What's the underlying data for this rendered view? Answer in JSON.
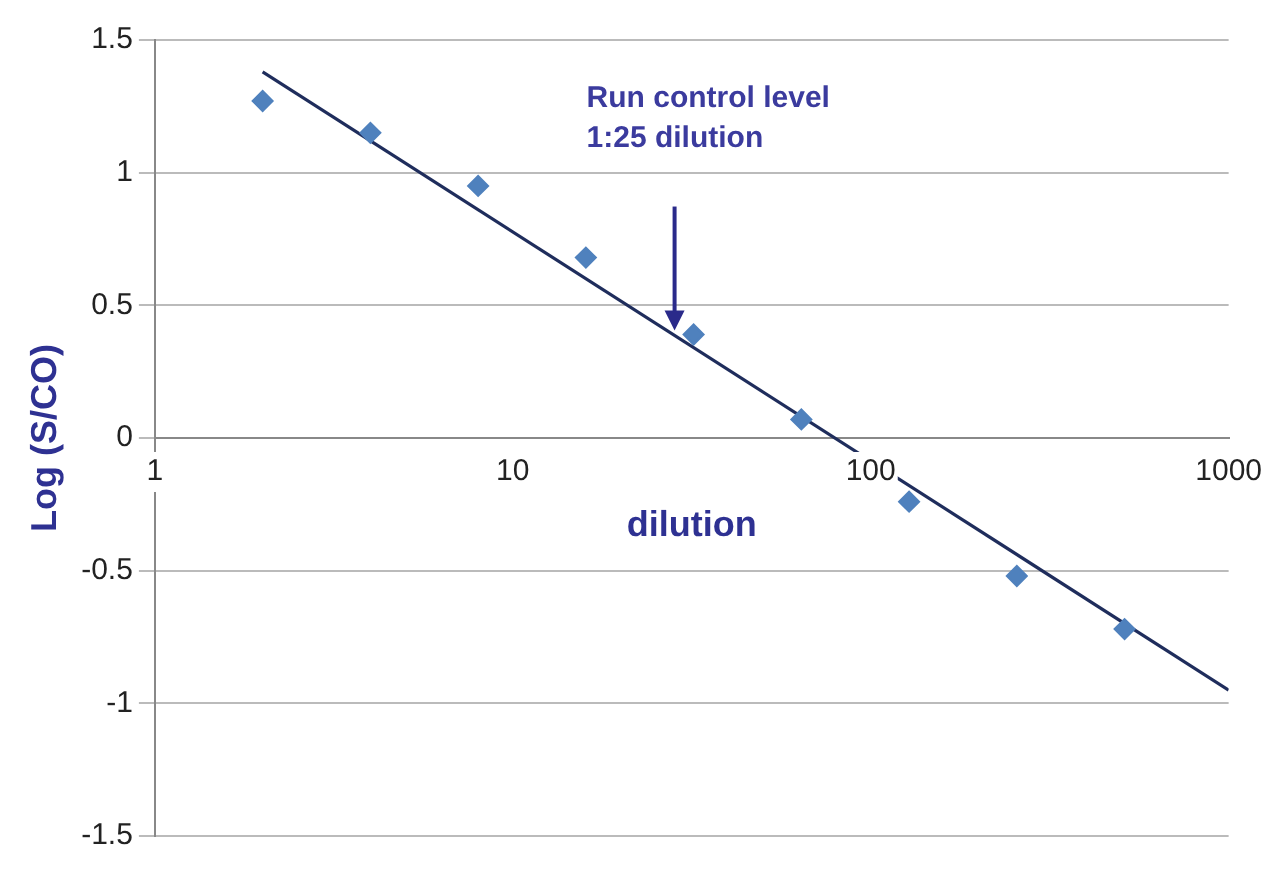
{
  "chart_data": {
    "type": "scatter",
    "xlabel": "dilution",
    "ylabel": "Log (S/CO)",
    "log": "x",
    "xlim": [
      1,
      1000
    ],
    "xticks": [
      1,
      10,
      100,
      1000
    ],
    "ylim": [
      -1.5,
      1.5
    ],
    "yticks": [
      -1.5,
      -1,
      -0.5,
      0,
      0.5,
      1,
      1.5
    ],
    "grid": "y",
    "legend": false,
    "marker": "diamond",
    "annotations": [
      "Run control level\n1:25 dilution"
    ],
    "series": [
      {
        "color": "#4f81bd",
        "x": [
          2,
          4,
          8,
          16,
          32,
          64,
          128,
          256,
          512
        ],
        "values": [
          1.27,
          1.15,
          0.95,
          0.68,
          0.39,
          0.07,
          -0.24,
          -0.52,
          -0.72
        ]
      },
      {
        "type": "line",
        "color": "#1f2d5c",
        "marker": "none",
        "x": [
          2,
          1000
        ],
        "values": [
          1.38,
          -0.95
        ]
      }
    ]
  }
}
